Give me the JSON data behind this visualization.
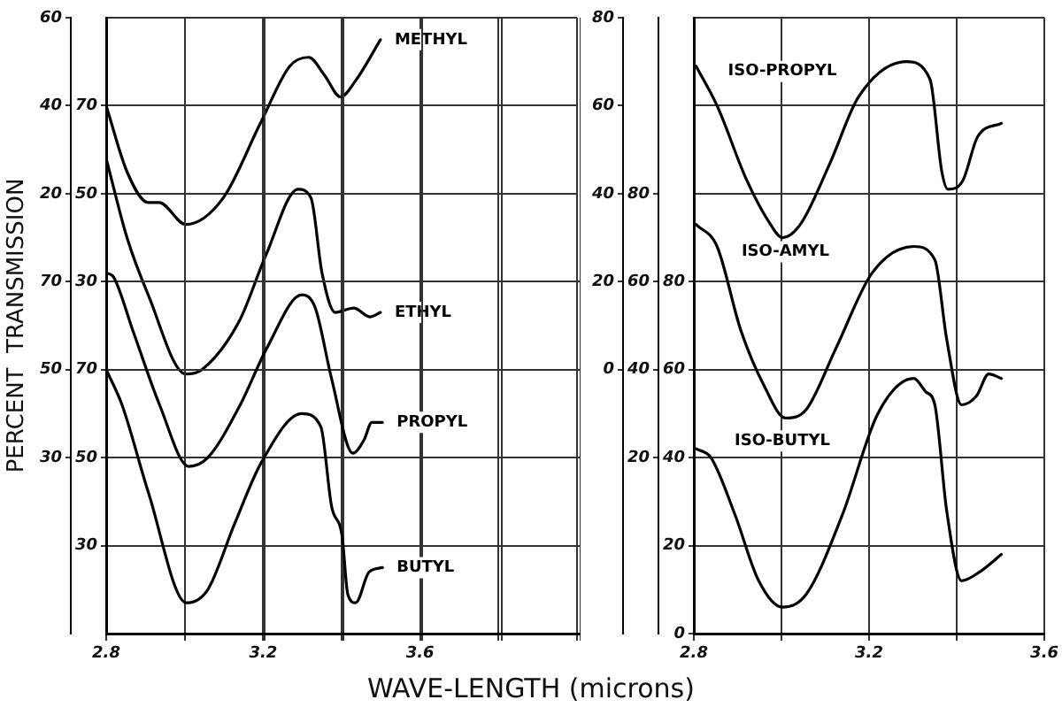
{
  "chart_data": [
    {
      "type": "line",
      "ylabel": "PERCENT  TRANSMISSION",
      "xlabel": "WAVE-LENGTH (microns)",
      "xlim": [
        2.8,
        4.0
      ],
      "xticks": [
        2.8,
        {
          "value": 3.0,
          "label": null
        },
        3.2,
        {
          "value": 3.4,
          "label": null
        },
        3.6,
        {
          "value": 3.8,
          "label": null
        },
        {
          "value": 4.0,
          "label": null
        }
      ],
      "ylim": [
        -80,
        60
      ],
      "yticks": [
        20,
        40,
        60
      ],
      "y2lim": [
        -50,
        90
      ],
      "y2ticks": [
        30,
        50,
        70
      ],
      "grid": true,
      "legend": false,
      "marker": "none",
      "line_style": "solid",
      "series": [
        {
          "name": "METHYL",
          "color": "#000000",
          "x": [
            2.8,
            2.853,
            2.907,
            2.935,
            3.003,
            3.098,
            3.193,
            3.268,
            3.316,
            3.356,
            3.397,
            3.438,
            3.499
          ],
          "values": [
            40,
            25,
            18,
            18,
            13,
            19,
            36,
            49,
            51,
            47,
            42,
            46,
            55
          ]
        },
        {
          "name": "ETHYL",
          "axis": "y2",
          "color": "#000000",
          "x": [
            2.8,
            2.853,
            2.907,
            3.003,
            3.044,
            3.139,
            3.207,
            3.289,
            3.322,
            3.35,
            3.384,
            3.431,
            3.472,
            3.499
          ],
          "values": [
            58,
            40,
            27,
            9,
            10,
            21,
            36,
            51,
            49,
            32,
            23,
            24,
            22,
            23
          ]
        }
      ]
    },
    {
      "type": "line",
      "xlim": [
        2.8,
        4.0
      ],
      "xticks": [
        2.8,
        {
          "value": 3.0,
          "label": null
        },
        3.2,
        {
          "value": 3.4,
          "label": null
        },
        3.6,
        {
          "value": 3.8,
          "label": null
        },
        {
          "value": 4.0,
          "label": null
        }
      ],
      "ylim": [
        10,
        150
      ],
      "yticks": [
        30,
        50,
        70
      ],
      "y2lim": [
        -10,
        130
      ],
      "y2ticks": [
        30,
        50,
        70
      ],
      "grid": true,
      "legend": false,
      "marker": "none",
      "line_style": "solid",
      "tick_labels": "y",
      "series": [
        {
          "name": "PROPYL",
          "axis": "y2",
          "color": "#000000",
          "x": [
            2.8,
            2.819,
            2.867,
            2.935,
            3.009,
            3.057,
            3.139,
            3.207,
            3.295,
            3.329,
            3.37,
            3.424,
            3.452,
            3.472,
            3.499
          ],
          "values": [
            72,
            71,
            59,
            42,
            28,
            30,
            42,
            55,
            67,
            64,
            48,
            31,
            34,
            38,
            38
          ]
        },
        {
          "name": "BUTYL",
          "color": "#000000",
          "x": [
            2.8,
            2.84,
            2.907,
            3.003,
            3.057,
            3.125,
            3.193,
            3.295,
            3.343,
            3.37,
            3.397,
            3.411,
            3.431,
            3.465,
            3.499
          ],
          "values": [
            70,
            62,
            42,
            17,
            20,
            35,
            49,
            60,
            57,
            39,
            32,
            19,
            17,
            24,
            25
          ]
        }
      ]
    },
    {
      "type": "line",
      "xlim": [
        2.8,
        3.6
      ],
      "xticks": [
        2.8,
        {
          "value": 3.0,
          "label": null
        },
        3.2,
        {
          "value": 3.4,
          "label": null
        },
        3.6
      ],
      "ylim": [
        0,
        140
      ],
      "yticks": [
        0,
        20,
        40,
        60,
        80
      ],
      "y2lim": [
        -20,
        120
      ],
      "y2ticks": [
        20,
        40,
        60,
        80
      ],
      "y3lim": [
        -60,
        80
      ],
      "y3ticks": [
        0,
        20,
        40,
        60,
        80
      ],
      "grid": true,
      "legend": false,
      "marker": "none",
      "line_style": "solid",
      "series": [
        {
          "name": "ISO-PROPYL",
          "axis": "y3",
          "color": "#000000",
          "x": [
            2.805,
            2.853,
            2.921,
            2.975,
            3.002,
            3.043,
            3.111,
            3.176,
            3.285,
            3.339,
            3.366,
            3.38,
            3.414,
            3.448,
            3.502
          ],
          "values": [
            69,
            60,
            43,
            33,
            30,
            33,
            47,
            62,
            70,
            66,
            45,
            41,
            43,
            53,
            56
          ]
        },
        {
          "name": "ISO-AMYL",
          "axis": "y2",
          "color": "#000000",
          "x": [
            2.805,
            2.853,
            2.907,
            2.962,
            3.009,
            3.057,
            3.125,
            3.207,
            3.302,
            3.35,
            3.377,
            3.411,
            3.445,
            3.473,
            3.502
          ],
          "values": [
            73,
            68,
            49,
            36,
            29,
            31,
            45,
            62,
            68,
            65,
            47,
            32,
            34,
            39,
            38
          ]
        },
        {
          "name": "ISO-BUTYL",
          "color": "#000000",
          "x": [
            2.805,
            2.839,
            2.894,
            2.948,
            3.002,
            3.057,
            3.139,
            3.22,
            3.302,
            3.329,
            3.35,
            3.377,
            3.411,
            3.452,
            3.502
          ],
          "values": [
            42,
            40,
            27,
            12,
            6,
            9,
            27,
            50,
            58,
            55,
            52,
            28,
            12,
            14,
            18
          ]
        }
      ]
    }
  ]
}
